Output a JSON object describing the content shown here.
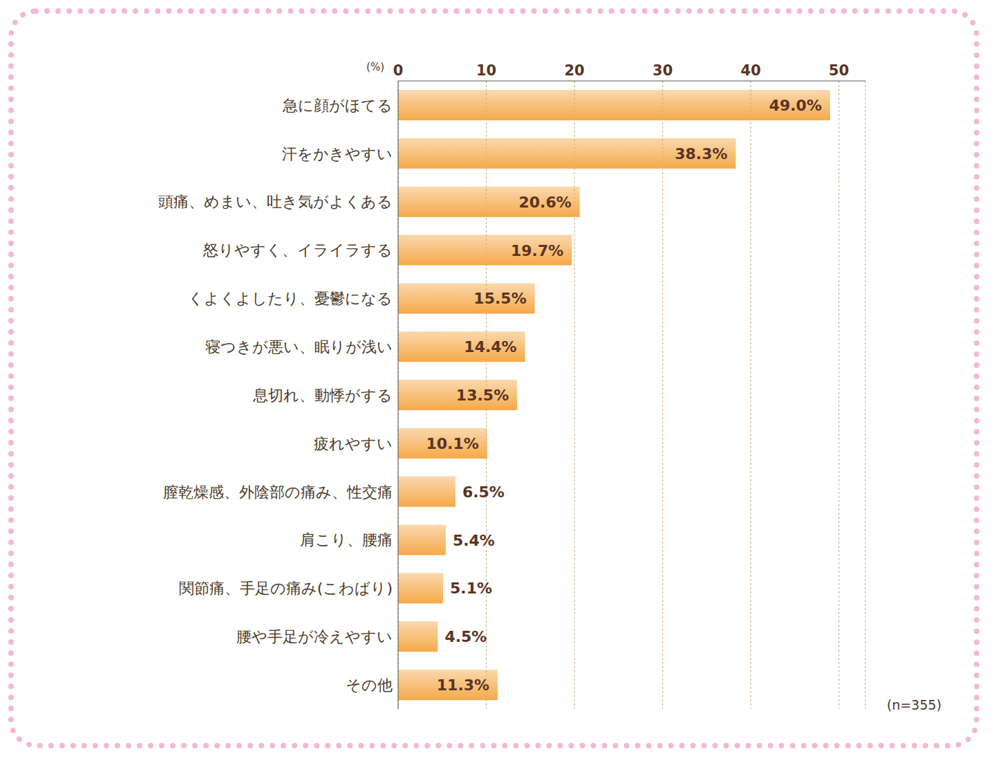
{
  "chart_data": {
    "type": "bar",
    "orientation": "horizontal",
    "xlabel": "(%)",
    "annotation": "(n=355)",
    "categories": [
      "急に顔がほてる",
      "汗をかきやすい",
      "頭痛、めまい、吐き気がよくある",
      "怒りやすく、イライラする",
      "くよくよしたり、憂鬱になる",
      "寝つきが悪い、眠りが浅い",
      "息切れ、動悸がする",
      "疲れやすい",
      "膣乾燥感、外陰部の痛み、性交痛",
      "肩こり、腰痛",
      "関節痛、手足の痛み(こわばり)",
      "腰や手足が冷えやすい",
      "その他"
    ],
    "values": [
      49.0,
      38.3,
      20.6,
      19.7,
      15.5,
      14.4,
      13.5,
      10.1,
      6.5,
      5.4,
      5.1,
      4.5,
      11.3
    ],
    "value_labels": [
      "49.0%",
      "38.3%",
      "20.6%",
      "19.7%",
      "15.5%",
      "14.4%",
      "13.5%",
      "10.1%",
      "6.5%",
      "5.4%",
      "5.1%",
      "4.5%",
      "11.3%"
    ],
    "data_labels": true,
    "color": "#f5a94a",
    "xlim": [
      0,
      53
    ],
    "xticks": [
      0,
      10,
      20,
      30,
      40,
      50
    ],
    "grid": true
  }
}
